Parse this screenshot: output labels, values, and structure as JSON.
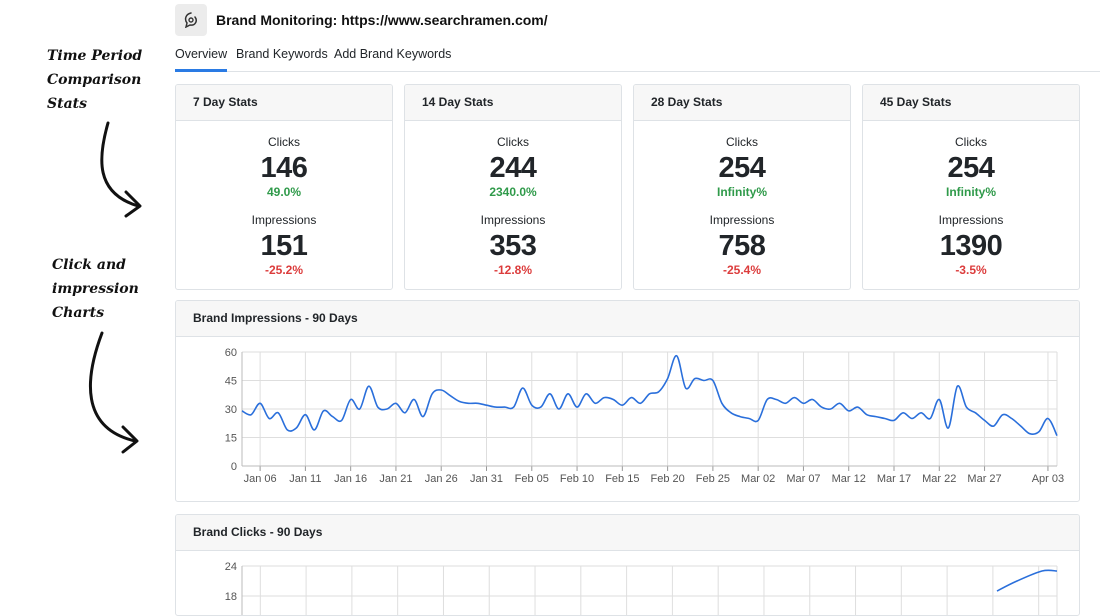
{
  "annotations": {
    "time_period": [
      "Time Period",
      "Comparison",
      "Stats"
    ],
    "charts": [
      "Click and",
      "impression",
      "Charts"
    ]
  },
  "header": {
    "logo_icon": "brand-logo-icon",
    "title": "Brand Monitoring: https://www.searchramen.com/"
  },
  "tabs": [
    {
      "label": "Overview",
      "active": true
    },
    {
      "label": "Brand Keywords",
      "active": false
    },
    {
      "label": "Add Brand Keywords",
      "active": false
    }
  ],
  "stats": [
    {
      "title": "7 Day Stats",
      "clicks_label": "Clicks",
      "clicks": "146",
      "clicks_change": "49.0%",
      "impressions_label": "Impressions",
      "impressions": "151",
      "impressions_change": "-25.2%"
    },
    {
      "title": "14 Day Stats",
      "clicks_label": "Clicks",
      "clicks": "244",
      "clicks_change": "2340.0%",
      "impressions_label": "Impressions",
      "impressions": "353",
      "impressions_change": "-12.8%"
    },
    {
      "title": "28 Day Stats",
      "clicks_label": "Clicks",
      "clicks": "254",
      "clicks_change": "Infinity%",
      "impressions_label": "Impressions",
      "impressions": "758",
      "impressions_change": "-25.4%"
    },
    {
      "title": "45 Day Stats",
      "clicks_label": "Clicks",
      "clicks": "254",
      "clicks_change": "Infinity%",
      "impressions_label": "Impressions",
      "impressions": "1390",
      "impressions_change": "-3.5%"
    }
  ],
  "colors": {
    "positive": "#2f9a4a",
    "negative": "#dc3c3c",
    "line": "#2a6fdb",
    "accent": "#2a7be4"
  },
  "impressions_chart": {
    "title": "Brand Impressions - 90 Days"
  },
  "clicks_chart": {
    "title": "Brand Clicks - 90 Days"
  },
  "chart_data": [
    {
      "type": "line",
      "title": "Brand Impressions - 90 Days",
      "ylim": [
        0,
        60
      ],
      "yticks": [
        0,
        15,
        30,
        45,
        60
      ],
      "grid": true,
      "x_start": "2025-01-04",
      "xtick_labels": [
        "Jan 06",
        "Jan 11",
        "Jan 16",
        "Jan 21",
        "Jan 26",
        "Jan 31",
        "Feb 05",
        "Feb 10",
        "Feb 15",
        "Feb 20",
        "Feb 25",
        "Mar 02",
        "Mar 07",
        "Mar 12",
        "Mar 17",
        "Mar 22",
        "Mar 27",
        "Apr 03"
      ],
      "values": [
        29,
        27,
        33,
        25,
        28,
        19,
        20,
        27,
        19,
        29,
        26,
        24,
        35,
        30,
        42,
        31,
        30,
        33,
        28,
        35,
        26,
        38,
        40,
        37,
        34,
        33,
        33,
        32,
        31,
        31,
        31,
        41,
        32,
        31,
        38,
        30,
        38,
        31,
        38,
        33,
        36,
        35,
        32,
        36,
        33,
        38,
        39,
        46,
        58,
        41,
        46,
        45,
        45,
        33,
        28,
        26,
        25,
        24,
        35,
        35,
        33,
        36,
        33,
        35,
        31,
        30,
        33,
        29,
        31,
        27,
        26,
        25,
        24,
        28,
        25,
        28,
        25,
        35,
        20,
        42,
        31,
        28,
        24,
        21,
        27,
        25,
        21,
        17,
        18,
        25,
        16
      ]
    },
    {
      "type": "line",
      "title": "Brand Clicks - 90 Days",
      "ylim": [
        0,
        24
      ],
      "yticks": [
        18,
        24
      ],
      "grid": true,
      "values_visible_end": [
        19,
        21,
        23,
        23
      ]
    }
  ]
}
